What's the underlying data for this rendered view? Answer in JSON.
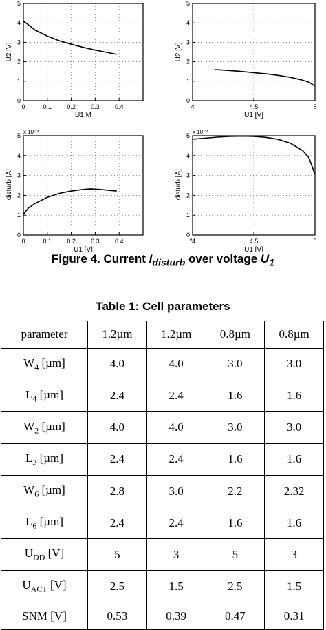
{
  "caption": {
    "prefix": "Figure 4. Current ",
    "symbol": "I",
    "symbol_sub": "disturb",
    "middle": " over voltage ",
    "var": "U",
    "var_sub": "1"
  },
  "chart_data": [
    {
      "type": "line",
      "xlabel": "U1 M",
      "ylabel": "U2 [V]",
      "xlim": [
        0,
        0.5
      ],
      "ylim": [
        0,
        5
      ],
      "xticks": [
        "0",
        "0.1",
        "0.2",
        "0.3",
        "0.4"
      ],
      "yticks": [
        "0",
        "1",
        "2",
        "3",
        "4",
        "5"
      ],
      "exponent": "",
      "grid": true,
      "x": [
        0,
        0.05,
        0.1,
        0.15,
        0.2,
        0.25,
        0.3,
        0.35,
        0.39
      ],
      "y": [
        4.1,
        3.62,
        3.32,
        3.08,
        2.9,
        2.74,
        2.6,
        2.48,
        2.38
      ]
    },
    {
      "type": "line",
      "xlabel": "U1 [V]",
      "ylabel": "U2 [V]",
      "xlim": [
        4,
        5
      ],
      "ylim": [
        0,
        5
      ],
      "xticks": [
        "4",
        "4.5",
        "5"
      ],
      "yticks": [
        "0",
        "1",
        "2",
        "3",
        "4",
        "5"
      ],
      "exponent": "",
      "grid": true,
      "x": [
        4.18,
        4.3,
        4.4,
        4.5,
        4.6,
        4.7,
        4.8,
        4.9,
        4.95,
        5.0
      ],
      "y": [
        1.6,
        1.55,
        1.5,
        1.44,
        1.38,
        1.3,
        1.2,
        1.05,
        0.95,
        0.75
      ]
    },
    {
      "type": "line",
      "xlabel": "U1 [V]",
      "ylabel": "Idisturb [A]",
      "xlim": [
        0,
        0.5
      ],
      "ylim": [
        0,
        5
      ],
      "xticks": [
        "0",
        "0.1",
        "0.2",
        "0.3",
        "0.4"
      ],
      "yticks": [
        "0",
        "1",
        "2",
        "3",
        "4",
        "5"
      ],
      "exponent": "x 10⁻⁴",
      "grid": true,
      "x": [
        0,
        0.02,
        0.05,
        0.1,
        0.15,
        0.2,
        0.25,
        0.28,
        0.32,
        0.36,
        0.39
      ],
      "y": [
        1.05,
        1.35,
        1.6,
        1.9,
        2.1,
        2.22,
        2.3,
        2.33,
        2.3,
        2.25,
        2.22
      ]
    },
    {
      "type": "line",
      "xlabel": "U1 [V]",
      "ylabel": "Idisturb [A]",
      "xlim": [
        4,
        5
      ],
      "ylim": [
        0,
        5
      ],
      "xticks": [
        "\"4",
        "4.5",
        "5"
      ],
      "yticks": [
        "0",
        "1",
        "2",
        "3",
        "4",
        "5"
      ],
      "exponent": "x 10⁻⁴",
      "grid": true,
      "x": [
        4.0,
        4.1,
        4.2,
        4.3,
        4.4,
        4.5,
        4.6,
        4.7,
        4.8,
        4.9,
        4.95,
        5.0
      ],
      "y": [
        4.83,
        4.88,
        4.93,
        4.97,
        4.98,
        4.97,
        4.92,
        4.82,
        4.62,
        4.25,
        3.9,
        3.05
      ]
    }
  ],
  "table": {
    "title": "Table 1: Cell parameters",
    "rows": [
      {
        "label": "parameter",
        "label_sub": "",
        "label_unit": "",
        "cells": [
          "1.2µm",
          "1.2µm",
          "0.8µm",
          "0.8µm"
        ]
      },
      {
        "label": "W",
        "label_sub": "4",
        "label_unit": " [µm]",
        "cells": [
          "4.0",
          "4.0",
          "3.0",
          "3.0"
        ]
      },
      {
        "label": "L",
        "label_sub": "4",
        "label_unit": " [µm]",
        "cells": [
          "2.4",
          "2.4",
          "1.6",
          "1.6"
        ]
      },
      {
        "label": "W",
        "label_sub": "2",
        "label_unit": " [µm]",
        "cells": [
          "4.0",
          "4.0",
          "3.0",
          "3.0"
        ]
      },
      {
        "label": "L",
        "label_sub": "2",
        "label_unit": " [µm]",
        "cells": [
          "2.4",
          "2.4",
          "1.6",
          "1.6"
        ]
      },
      {
        "label": "W",
        "label_sub": "6",
        "label_unit": " [µm]",
        "cells": [
          "2.8",
          "3.0",
          "2.2",
          "2.32"
        ]
      },
      {
        "label": "L",
        "label_sub": "6",
        "label_unit": " [µm]",
        "cells": [
          "2.4",
          "2.4",
          "1.6",
          "1.6"
        ]
      },
      {
        "label": "U",
        "label_sub": "DD",
        "label_unit": " [V]",
        "cells": [
          "5",
          "3",
          "5",
          "3"
        ]
      },
      {
        "label": "U",
        "label_sub": "ACT",
        "label_unit": " [V]",
        "cells": [
          "2.5",
          "1.5",
          "2.5",
          "1.5"
        ]
      },
      {
        "label": "SNM",
        "label_sub": "",
        "label_unit": " [V]",
        "cells": [
          "0.53",
          "0.39",
          "0.47",
          "0.31"
        ]
      }
    ]
  }
}
